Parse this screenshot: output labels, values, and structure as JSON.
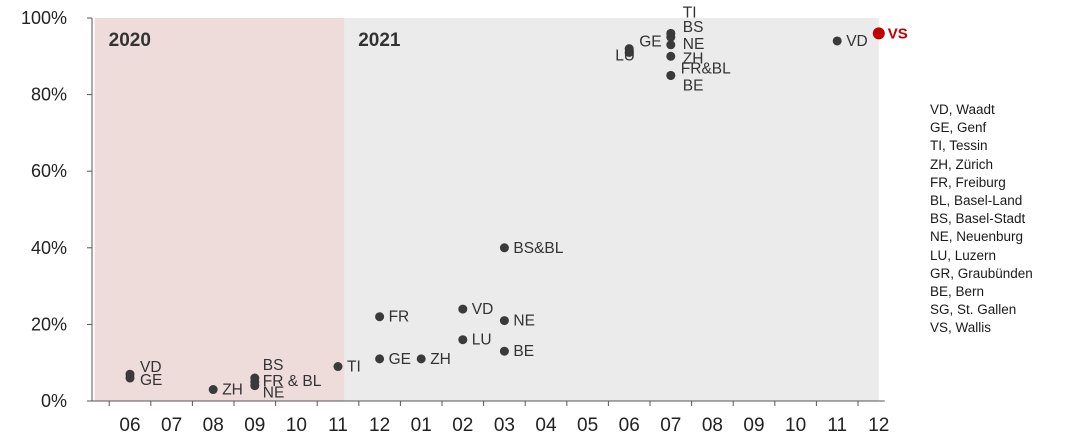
{
  "chart_data": {
    "type": "scatter",
    "title": "",
    "xlabel": "",
    "ylabel": "",
    "ylim": [
      0,
      100
    ],
    "y_ticks": [
      "0%",
      "20%",
      "40%",
      "60%",
      "80%",
      "100%"
    ],
    "x_ticks": [
      "06",
      "07",
      "08",
      "09",
      "10",
      "11",
      "12",
      "01",
      "02",
      "03",
      "04",
      "05",
      "06",
      "07",
      "08",
      "09",
      "10",
      "11",
      "12"
    ],
    "x_axis_note": "monthly axis from 2020-06 to 2021-12",
    "regions": [
      {
        "label": "2020",
        "from": "2020-06",
        "to": "2020-12",
        "color": "#eedcdb"
      },
      {
        "label": "2021",
        "from": "2020-12",
        "to": "2021-12",
        "color": "#ebebeb"
      }
    ],
    "grid": false,
    "point_color": "#3a3a3a",
    "highlight_color": "#c00000",
    "points": [
      {
        "x": "2020-06",
        "y": 7,
        "label": "VD"
      },
      {
        "x": "2020-06",
        "y": 6,
        "label": "GE"
      },
      {
        "x": "2020-08",
        "y": 3,
        "label": "ZH"
      },
      {
        "x": "2020-09",
        "y": 6,
        "label": "BS"
      },
      {
        "x": "2020-09",
        "y": 5,
        "label": "FR & BL"
      },
      {
        "x": "2020-09",
        "y": 4,
        "label": "NE"
      },
      {
        "x": "2020-11",
        "y": 9,
        "label": "TI"
      },
      {
        "x": "2020-12",
        "y": 22,
        "label": "FR"
      },
      {
        "x": "2020-12",
        "y": 11,
        "label": "GE"
      },
      {
        "x": "2021-01",
        "y": 11,
        "label": "ZH"
      },
      {
        "x": "2021-02",
        "y": 24,
        "label": "VD"
      },
      {
        "x": "2021-02",
        "y": 16,
        "label": "LU"
      },
      {
        "x": "2021-03",
        "y": 40,
        "label": "BS&BL"
      },
      {
        "x": "2021-03",
        "y": 21,
        "label": "NE"
      },
      {
        "x": "2021-03",
        "y": 13,
        "label": "BE"
      },
      {
        "x": "2021-06",
        "y": 92,
        "label": "GE"
      },
      {
        "x": "2021-06",
        "y": 91,
        "label": "LU"
      },
      {
        "x": "2021-07",
        "y": 96,
        "label": "TI"
      },
      {
        "x": "2021-07",
        "y": 95,
        "label": "BS"
      },
      {
        "x": "2021-07",
        "y": 93,
        "label": "NE"
      },
      {
        "x": "2021-07",
        "y": 90,
        "label": "ZH"
      },
      {
        "x": "2021-07",
        "y": 85,
        "label": "FR&BL"
      },
      {
        "x": "2021-07",
        "y": 85,
        "label": "BE"
      },
      {
        "x": "2021-11",
        "y": 94,
        "label": "VD"
      },
      {
        "x": "2021-12",
        "y": 96,
        "label": "VS",
        "highlight": true
      }
    ],
    "legend": {
      "placement": "right",
      "entries": [
        "VD, Waadt",
        "GE, Genf",
        "TI, Tessin",
        "ZH, Zürich",
        "FR, Freiburg",
        "BL, Basel-Land",
        "BS, Basel-Stadt",
        "NE, Neuenburg",
        "LU, Luzern",
        "GR, Graubünden",
        "BE, Bern",
        "SG, St. Gallen",
        "VS, Wallis"
      ]
    }
  }
}
